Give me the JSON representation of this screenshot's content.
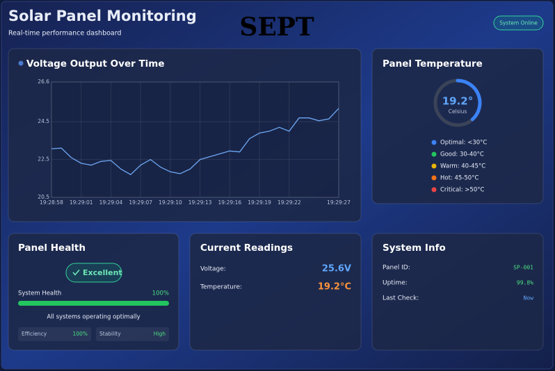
{
  "header": {
    "title": "Solar Panel Monitoring",
    "subtitle": "Real-time performance dashboard",
    "logo": "SEPT",
    "status": "System Online"
  },
  "chart_data": {
    "type": "line",
    "title": "Voltage Output Over Time",
    "categories": [
      "19:28:58",
      null,
      null,
      "19:29:01",
      null,
      null,
      "19:29:04",
      null,
      null,
      "19:29:07",
      null,
      null,
      "19:29:10",
      null,
      null,
      "19:29:13",
      null,
      null,
      "19:29:16",
      null,
      null,
      "19:29:19",
      null,
      null,
      "19:29:22",
      null,
      null,
      null,
      null,
      "19:29:27"
    ],
    "values": [
      23.07,
      23.1,
      22.6,
      22.3,
      22.2,
      22.4,
      22.45,
      22.0,
      21.7,
      22.2,
      22.5,
      22.1,
      21.85,
      21.75,
      22.0,
      22.5,
      22.65,
      22.8,
      22.95,
      22.9,
      23.6,
      23.9,
      24.0,
      24.2,
      24.0,
      24.7,
      24.7,
      24.55,
      24.65,
      25.2
    ],
    "color": "#6ea8f5",
    "ylim": [
      20.5,
      26.6
    ],
    "yticks": [
      20.5,
      22.5,
      24.5,
      26.6
    ],
    "grid": true
  },
  "temperature_panel": {
    "title": "Panel Temperature",
    "gauge": {
      "value": 19.2,
      "label": "19.2°",
      "unit": "Celsius",
      "range": [
        0,
        50
      ],
      "color": "#3b82f6"
    },
    "legend": [
      {
        "label": "Optimal: <30°C",
        "color": "#3b82f6"
      },
      {
        "label": "Good: 30-40°C",
        "color": "#22c55e"
      },
      {
        "label": "Warm: 40-45°C",
        "color": "#eab308"
      },
      {
        "label": "Hot: 45-50°C",
        "color": "#f97316"
      },
      {
        "label": "Critical: >50°C",
        "color": "#ef4444"
      }
    ]
  },
  "health_panel": {
    "title": "Panel Health",
    "status": "Excellent",
    "metric": {
      "label": "System Health",
      "value": 100,
      "value_label": "100%",
      "range": [
        0,
        100
      ],
      "color": "#22c55e"
    },
    "message": "All systems operating optimally",
    "stats": [
      {
        "label": "Efficiency",
        "value": "100%"
      },
      {
        "label": "Stability",
        "value": "High"
      }
    ]
  },
  "readings_panel": {
    "title": "Current Readings",
    "rows": [
      {
        "label": "Voltage:",
        "value": "25.6V",
        "color": "#60a5fa"
      },
      {
        "label": "Temperature:",
        "value": "19.2°C",
        "color": "#fb923c"
      }
    ]
  },
  "info_panel": {
    "title": "System Info",
    "rows": [
      {
        "label": "Panel ID:",
        "value": "SP-001",
        "color": "#4ade80"
      },
      {
        "label": "Uptime:",
        "value": "99.8%",
        "color": "#4ade80"
      },
      {
        "label": "Last Check:",
        "value": "Now",
        "color": "#60a5fa"
      }
    ]
  }
}
